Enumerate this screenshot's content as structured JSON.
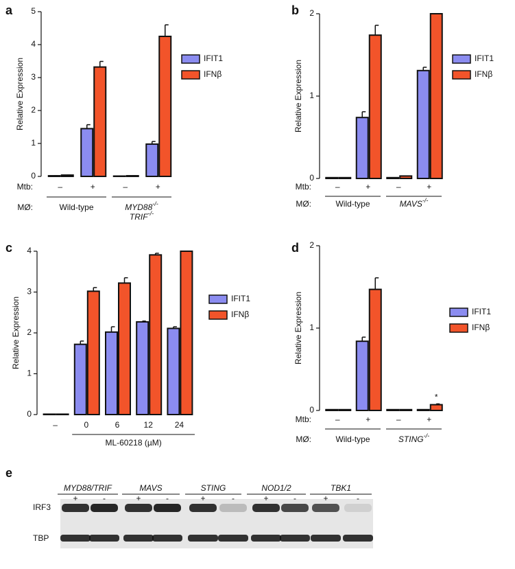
{
  "chart_data": [
    {
      "type": "bar",
      "label": "a",
      "ylabel": "Relative Expression",
      "ylim": [
        0,
        5
      ],
      "yticks": [
        0,
        1,
        2,
        3,
        4,
        5
      ],
      "category_label": "Mtb:",
      "categories": [
        "–",
        "+",
        "–",
        "+"
      ],
      "group_label": "MØ:",
      "groups": [
        {
          "lines": [
            "Wild-type"
          ]
        },
        {
          "lines": [
            "MYD88",
            "TRIF"
          ],
          "sup": "-/-"
        }
      ],
      "series": [
        {
          "name": "IFIT1",
          "color": "#8b8cf0",
          "values": [
            0.02,
            1.45,
            0.01,
            0.98
          ],
          "errors": [
            0,
            0.12,
            0,
            0.08
          ]
        },
        {
          "name": "IFNβ",
          "color": "#f2542a",
          "values": [
            0.04,
            3.32,
            0.02,
            4.25
          ],
          "errors": [
            0,
            0.17,
            0,
            0.35
          ]
        }
      ]
    },
    {
      "type": "bar",
      "label": "b",
      "ylabel": "Relative Expression",
      "ylim": [
        0,
        2
      ],
      "yticks": [
        0,
        1,
        2
      ],
      "category_label": "Mtb:",
      "categories": [
        "–",
        "+",
        "–",
        "+"
      ],
      "group_label": "MØ:",
      "groups": [
        {
          "lines": [
            "Wild-type"
          ]
        },
        {
          "lines": [
            "MAVS"
          ],
          "sup": "-/-"
        }
      ],
      "series": [
        {
          "name": "IFIT1",
          "color": "#8b8cf0",
          "values": [
            0.01,
            0.74,
            0.01,
            1.31
          ],
          "errors": [
            0,
            0.07,
            0,
            0.04
          ]
        },
        {
          "name": "IFNβ",
          "color": "#f2542a",
          "values": [
            0.01,
            1.74,
            0.03,
            2.0
          ],
          "errors": [
            0,
            0.12,
            0,
            0
          ]
        }
      ]
    },
    {
      "type": "bar",
      "label": "c",
      "ylabel": "Relative Expression",
      "ylim": [
        0,
        4
      ],
      "yticks": [
        0,
        1,
        2,
        3,
        4
      ],
      "categories": [
        "–",
        "0",
        "6",
        "12",
        "24"
      ],
      "xlabel": "ML-60218 (µM)",
      "series": [
        {
          "name": "IFIT1",
          "color": "#8b8cf0",
          "values": [
            0.01,
            1.72,
            2.02,
            2.27,
            2.11
          ],
          "errors": [
            0,
            0.08,
            0.13,
            0.02,
            0.04
          ]
        },
        {
          "name": "IFNβ",
          "color": "#f2542a",
          "values": [
            0.01,
            3.02,
            3.22,
            3.91,
            4.0
          ],
          "errors": [
            0,
            0.09,
            0.13,
            0.04,
            0
          ]
        }
      ]
    },
    {
      "type": "bar",
      "label": "d",
      "ylabel": "Relative Expression",
      "ylim": [
        0,
        2
      ],
      "yticks": [
        0,
        1,
        2
      ],
      "category_label": "Mtb:",
      "categories": [
        "–",
        "+",
        "–",
        "+"
      ],
      "group_label": "MØ:",
      "groups": [
        {
          "lines": [
            "Wild-type"
          ]
        },
        {
          "lines": [
            "STING"
          ],
          "sup": "-/-"
        }
      ],
      "annotations": [
        {
          "text": "*"
        }
      ],
      "series": [
        {
          "name": "IFIT1",
          "color": "#8b8cf0",
          "values": [
            0.01,
            0.84,
            0.01,
            0.01
          ],
          "errors": [
            0,
            0.05,
            0,
            0
          ]
        },
        {
          "name": "IFNβ",
          "color": "#f2542a",
          "values": [
            0.01,
            1.47,
            0.01,
            0.07
          ],
          "errors": [
            0,
            0.14,
            0,
            0.01
          ]
        }
      ]
    }
  ],
  "blot": {
    "label": "e",
    "groups": [
      "MYD88/TRIF",
      "MAVS",
      "STING",
      "NOD1/2",
      "TBK1"
    ],
    "lanes": [
      "+",
      "-",
      "+",
      "-",
      "+",
      "-",
      "+",
      "-",
      "+",
      "-"
    ],
    "rows": [
      "IRF3",
      "TBP"
    ]
  }
}
